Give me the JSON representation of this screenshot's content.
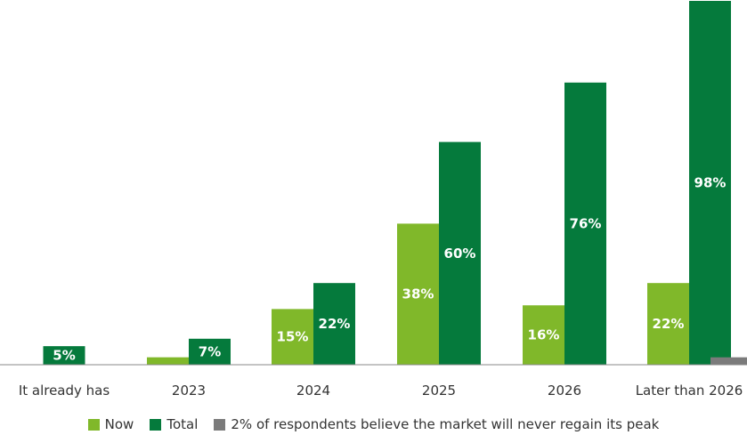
{
  "chart_data": {
    "type": "bar",
    "categories": [
      "It already has",
      "2023",
      "2024",
      "2025",
      "2026",
      "Later than 2026"
    ],
    "series": [
      {
        "name": "Now",
        "color": "#80b82a",
        "values": [
          null,
          2,
          15,
          38,
          16,
          22
        ],
        "labels": [
          "",
          "",
          "15%",
          "38%",
          "16%",
          "22%"
        ]
      },
      {
        "name": "Total",
        "color": "#057a3c",
        "values": [
          5,
          7,
          22,
          60,
          76,
          98
        ],
        "labels": [
          "5%",
          "7%",
          "22%",
          "60%",
          "76%",
          "98%"
        ]
      }
    ],
    "extra": {
      "name": "2% of respondents believe the market will never regain its peak",
      "color": "#7b7b7b",
      "value": 2
    },
    "ylim": [
      0,
      98
    ],
    "legend_position": "bottom"
  }
}
